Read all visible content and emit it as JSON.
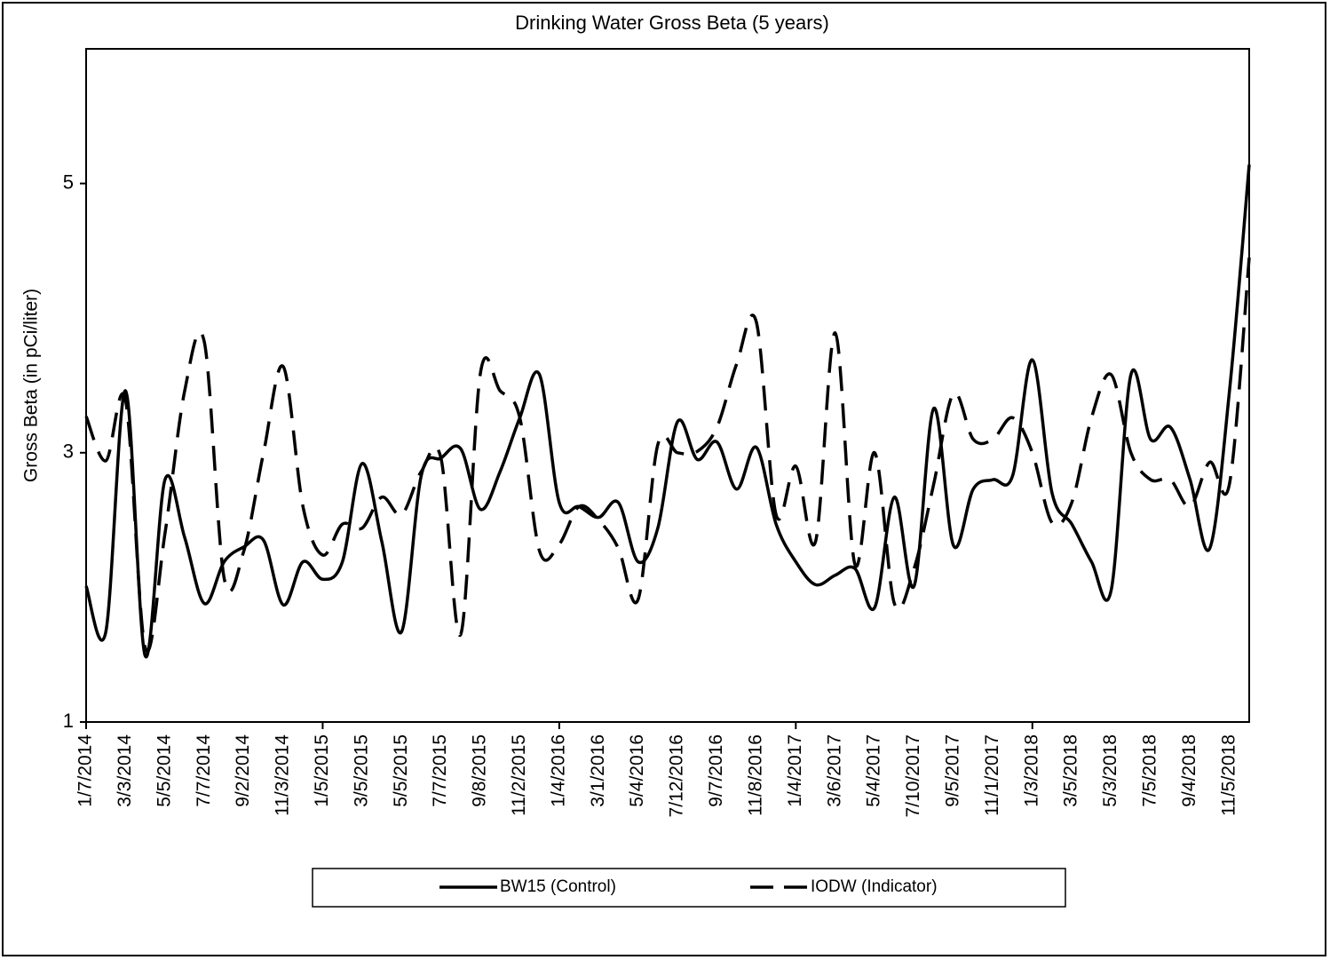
{
  "chart_data": {
    "type": "line",
    "title": "Drinking Water Gross Beta (5 years)",
    "y_label": "Gross Beta (in pCi/liter)",
    "categories": [
      "1/7/2014",
      null,
      "3/3/2014",
      null,
      "5/5/2014",
      null,
      "7/7/2014",
      null,
      "9/2/2014",
      null,
      "11/3/2014",
      null,
      "1/5/2015",
      null,
      "3/5/2015",
      null,
      "5/5/2015",
      null,
      "7/7/2015",
      null,
      "9/8/2015",
      null,
      "11/2/2015",
      null,
      "1/4/2016",
      null,
      "3/1/2016",
      null,
      "5/4/2016",
      null,
      "7/12/2016",
      null,
      "9/7/2016",
      null,
      "11/8/2016",
      null,
      "1/4/2017",
      null,
      "3/6/2017",
      null,
      "5/4/2017",
      null,
      "7/10/2017",
      null,
      "9/5/2017",
      null,
      "11/1/2017",
      null,
      "1/3/2018",
      null,
      "3/5/2018",
      null,
      "5/3/2018",
      null,
      "7/5/2018",
      null,
      "9/4/2018",
      null,
      "11/5/2018",
      null
    ],
    "series": [
      {
        "name": "BW15 (Control)",
        "color": "#000000",
        "dash": "solid",
        "values": [
          2.01,
          1.67,
          3.46,
          1.49,
          2.8,
          2.37,
          1.88,
          2.19,
          2.3,
          2.35,
          1.87,
          2.19,
          2.06,
          2.19,
          2.92,
          2.34,
          1.67,
          2.83,
          2.96,
          3.03,
          2.58,
          2.86,
          3.26,
          3.58,
          2.63,
          2.6,
          2.52,
          2.63,
          2.19,
          2.44,
          3.23,
          2.95,
          3.08,
          2.73,
          3.04,
          2.47,
          2.19,
          2.02,
          2.09,
          2.14,
          1.85,
          2.67,
          2.01,
          3.33,
          2.31,
          2.73,
          2.8,
          2.83,
          3.69,
          2.7,
          2.47,
          2.19,
          1.98,
          3.58,
          3.1,
          3.19,
          2.8,
          2.29,
          3.46,
          5.14
        ]
      },
      {
        "name": "IODW (Indicator)",
        "color": "#000000",
        "dash": "dashed",
        "values": [
          3.27,
          2.94,
          3.39,
          1.55,
          2.4,
          3.46,
          3.82,
          2.07,
          2.27,
          3.0,
          3.64,
          2.6,
          2.24,
          2.47,
          2.44,
          2.67,
          2.54,
          2.86,
          2.96,
          1.65,
          3.59,
          3.46,
          3.26,
          2.27,
          2.32,
          2.6,
          2.5,
          2.29,
          1.91,
          3.06,
          3.0,
          3.01,
          3.19,
          3.66,
          3.97,
          2.54,
          2.9,
          2.34,
          3.89,
          2.17,
          3.0,
          1.88,
          2.14,
          2.77,
          3.44,
          3.1,
          3.1,
          3.26,
          3.0,
          2.48,
          2.63,
          3.26,
          3.58,
          3.0,
          2.8,
          2.8,
          2.6,
          2.93,
          2.77,
          4.45
        ]
      }
    ],
    "ylim": [
      1,
      6
    ],
    "yticks": [
      1,
      3,
      5
    ],
    "legend": "bottom"
  }
}
